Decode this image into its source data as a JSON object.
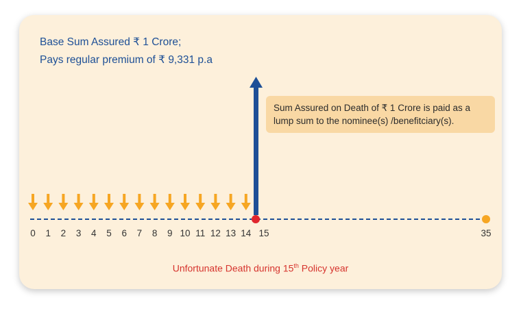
{
  "plan": {
    "line1": "Base Sum Assured ₹ 1 Crore;",
    "line2": "Pays regular premium of ₹ 9,331 p.a"
  },
  "callout": {
    "line1": "Sum Assured on Death of ₹ 1 Crore is paid as a",
    "line2": "lump sum to the nominee(s) /benefitciary(s)."
  },
  "caption": {
    "before": "Unfortunate Death during 15",
    "superscript": "th",
    "after": " Policy year"
  },
  "timeline": {
    "tick_labels": [
      "0",
      "1",
      "2",
      "3",
      "4",
      "5",
      "6",
      "7",
      "8",
      "9",
      "10",
      "11",
      "12",
      "13",
      "14",
      "15",
      "35"
    ],
    "premium_years": [
      0,
      1,
      2,
      3,
      4,
      5,
      6,
      7,
      8,
      9,
      10,
      11,
      12,
      13,
      14
    ],
    "death_year": 15,
    "maturity_year": 35
  },
  "colors": {
    "card": "#fdf0db",
    "headline": "#1d4f96",
    "callout_bg": "#f9d8a4",
    "premium_arrow": "#f6a623",
    "benefit_arrow": "#1d4f96",
    "timeline_dash": "#1d4f96",
    "death_marker": "#e0262d",
    "maturity_marker": "#f6a623",
    "caption": "#d6332d"
  },
  "icons": {
    "premium": "down-arrow-icon",
    "benefit": "up-arrow-icon"
  }
}
